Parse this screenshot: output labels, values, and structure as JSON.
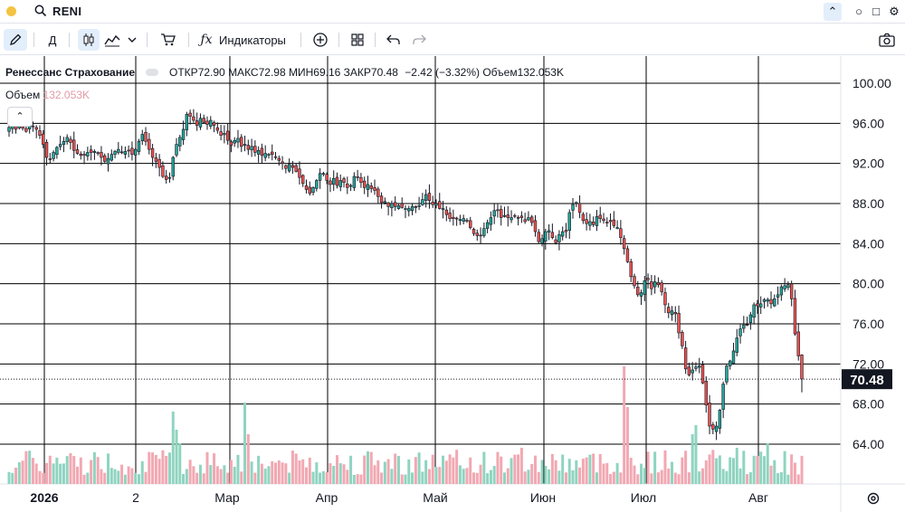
{
  "topbar": {
    "symbol": "RENI",
    "icons": [
      "status-dot-icon",
      "search-icon",
      "chevron-up-icon",
      "minimize-icon",
      "maximize-icon",
      "close-icon"
    ]
  },
  "toolbar": {
    "interval": "Д",
    "indicators_label": "Индикаторы",
    "icons": [
      "pencil-icon",
      "candles-icon",
      "line-chart-icon",
      "chevron-down-icon",
      "cart-icon",
      "fx-icon",
      "add-icon",
      "layout-icon",
      "undo-icon",
      "redo-icon",
      "camera-icon"
    ]
  },
  "legend": {
    "name": "Ренессанс Страхование",
    "open_label": "ОТКР",
    "open": "72.90",
    "high_label": "МАКС",
    "high": "72.98",
    "low_label": "МИН",
    "low": "69.16",
    "close_label": "ЗАКР",
    "close": "70.48",
    "change": "−2.42 (−3.32%)",
    "volume_label": "Объем",
    "volume": "132.053K"
  },
  "volume_legend": {
    "label": "Объем",
    "value": "132.053K"
  },
  "colors": {
    "up": "#26a69a",
    "down": "#ef5350",
    "vol_up": "#8fd4c0",
    "vol_down": "#f2a8b2",
    "grid": "#000000",
    "last_price_bg": "#131722"
  },
  "chart_data": {
    "type": "candlestick",
    "y_axis": {
      "min": 62,
      "max": 102,
      "ticks": [
        "100.00",
        "96.00",
        "92.00",
        "88.00",
        "84.00",
        "80.00",
        "76.00",
        "72.00",
        "68.00",
        "64.00"
      ],
      "tick_values": [
        100,
        96,
        92,
        88,
        84,
        80,
        76,
        72,
        68,
        64
      ]
    },
    "x_axis": {
      "labels": [
        "2026",
        "2",
        "Мар",
        "Апр",
        "Май",
        "Июн",
        "Июл",
        "Авг"
      ]
    },
    "last_price": {
      "value": 70.48,
      "label": "70.48"
    },
    "closes": [
      95.6,
      96.3,
      95.4,
      95.8,
      95.5,
      95.2,
      95.9,
      95.7,
      95.4,
      94.8,
      93.9,
      92.6,
      92.4,
      93.1,
      93.6,
      93.9,
      94.2,
      94.6,
      94.1,
      93.3,
      93.0,
      92.8,
      92.8,
      93.1,
      93.1,
      93.2,
      93.0,
      92.6,
      92.2,
      92.5,
      92.9,
      93.2,
      93.4,
      93.1,
      93.2,
      93.3,
      92.9,
      93.4,
      94.2,
      94.9,
      94.2,
      93.4,
      92.6,
      92.2,
      91.6,
      90.7,
      90.4,
      90.6,
      92.6,
      93.9,
      94.6,
      95.4,
      96.9,
      96.7,
      96.3,
      95.8,
      96.5,
      96.1,
      95.9,
      96.3,
      95.8,
      95.3,
      94.8,
      95.0,
      94.3,
      93.8,
      94.3,
      94.5,
      93.7,
      93.9,
      93.4,
      93.7,
      93.1,
      93.3,
      92.8,
      93.0,
      92.9,
      92.9,
      92.6,
      92.3,
      92.0,
      91.5,
      91.9,
      91.6,
      91.2,
      90.6,
      90.0,
      89.4,
      89.0,
      89.6,
      90.3,
      91.0,
      91.0,
      90.3,
      89.9,
      90.5,
      89.8,
      90.3,
      90.1,
      89.6,
      89.8,
      90.7,
      90.6,
      90.1,
      89.6,
      89.9,
      89.5,
      89.3,
      88.7,
      88.1,
      88.2,
      87.7,
      88.0,
      87.7,
      87.8,
      87.6,
      87.5,
      87.5,
      87.7,
      87.6,
      87.8,
      88.4,
      88.9,
      88.3,
      87.9,
      88.0,
      87.5,
      87.5,
      86.9,
      86.5,
      86.5,
      86.5,
      86.4,
      86.5,
      86.3,
      85.6,
      85.0,
      84.8,
      84.8,
      85.5,
      86.1,
      86.6,
      87.3,
      87.3,
      86.6,
      86.8,
      86.6,
      86.6,
      86.8,
      86.6,
      86.6,
      86.2,
      86.6,
      86.1,
      85.2,
      84.2,
      84.5,
      85.2,
      85.3,
      84.6,
      84.1,
      84.9,
      85.2,
      85.2,
      87.1,
      87.9,
      88.1,
      87.1,
      86.3,
      86.0,
      86.2,
      85.9,
      86.7,
      86.5,
      86.3,
      86.1,
      86.2,
      85.8,
      85.6,
      84.6,
      83.5,
      82.2,
      80.7,
      79.8,
      78.9,
      79.1,
      80.3,
      80.4,
      79.5,
      80.2,
      79.9,
      79.2,
      77.9,
      77.1,
      77.3,
      77.0,
      75.1,
      73.8,
      71.5,
      70.9,
      71.4,
      71.7,
      71.8,
      70.1,
      67.9,
      65.8,
      65.5,
      65.8,
      67.4,
      70.0,
      71.8,
      72.3,
      73.3,
      74.6,
      75.5,
      75.9,
      75.9,
      76.9,
      77.9,
      77.8,
      78.0,
      78.4,
      78.4,
      78.0,
      78.5,
      78.9,
      79.7,
      79.8,
      79.9,
      78.5,
      75.0,
      72.8,
      70.5
    ],
    "open": 72.9,
    "high": 72.98,
    "low": 69.16,
    "close": 70.48,
    "volume": {
      "last": "132.053K"
    }
  }
}
